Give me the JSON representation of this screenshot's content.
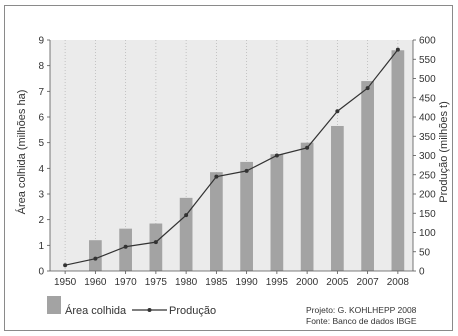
{
  "chart_data": {
    "type": "bar",
    "categories": [
      "1950",
      "1960",
      "1970",
      "1975",
      "1980",
      "1985",
      "1990",
      "1995",
      "2000",
      "2005",
      "2007",
      "2008"
    ],
    "series": [
      {
        "name": "Área colhida",
        "type": "bar",
        "axis": "left",
        "color": "#a3a3a3",
        "values": [
          0.0,
          1.2,
          1.65,
          1.85,
          2.85,
          3.85,
          4.25,
          4.55,
          5.0,
          5.65,
          7.4,
          8.6
        ]
      },
      {
        "name": "Produção",
        "type": "line",
        "axis": "right",
        "color": "#333333",
        "values": [
          15,
          32,
          63,
          75,
          145,
          245,
          260,
          300,
          320,
          415,
          475,
          575
        ]
      }
    ],
    "ylabel": "Área colhida (milhões ha)",
    "y2label": "Produção (milhões t)",
    "ylim": [
      0,
      9
    ],
    "y2lim": [
      0,
      600
    ],
    "yticks": [
      "0",
      "1",
      "2",
      "3",
      "4",
      "5",
      "6",
      "7",
      "8",
      "9"
    ],
    "y2ticks": [
      "0",
      "50",
      "100",
      "150",
      "200",
      "250",
      "300",
      "350",
      "400",
      "450",
      "500",
      "550",
      "600"
    ],
    "grid": "vertical dotted",
    "legend": "bottom-left",
    "credits": [
      "Projeto: G. KOHLHEPP 2008",
      "Fonte: Banco de dados IBGE"
    ],
    "colors": {
      "plot_background": "#ebebeb",
      "bar": "#a3a3a3",
      "line": "#333333",
      "grid": "#b8b8b8",
      "frame": "#8a8a8a"
    }
  }
}
